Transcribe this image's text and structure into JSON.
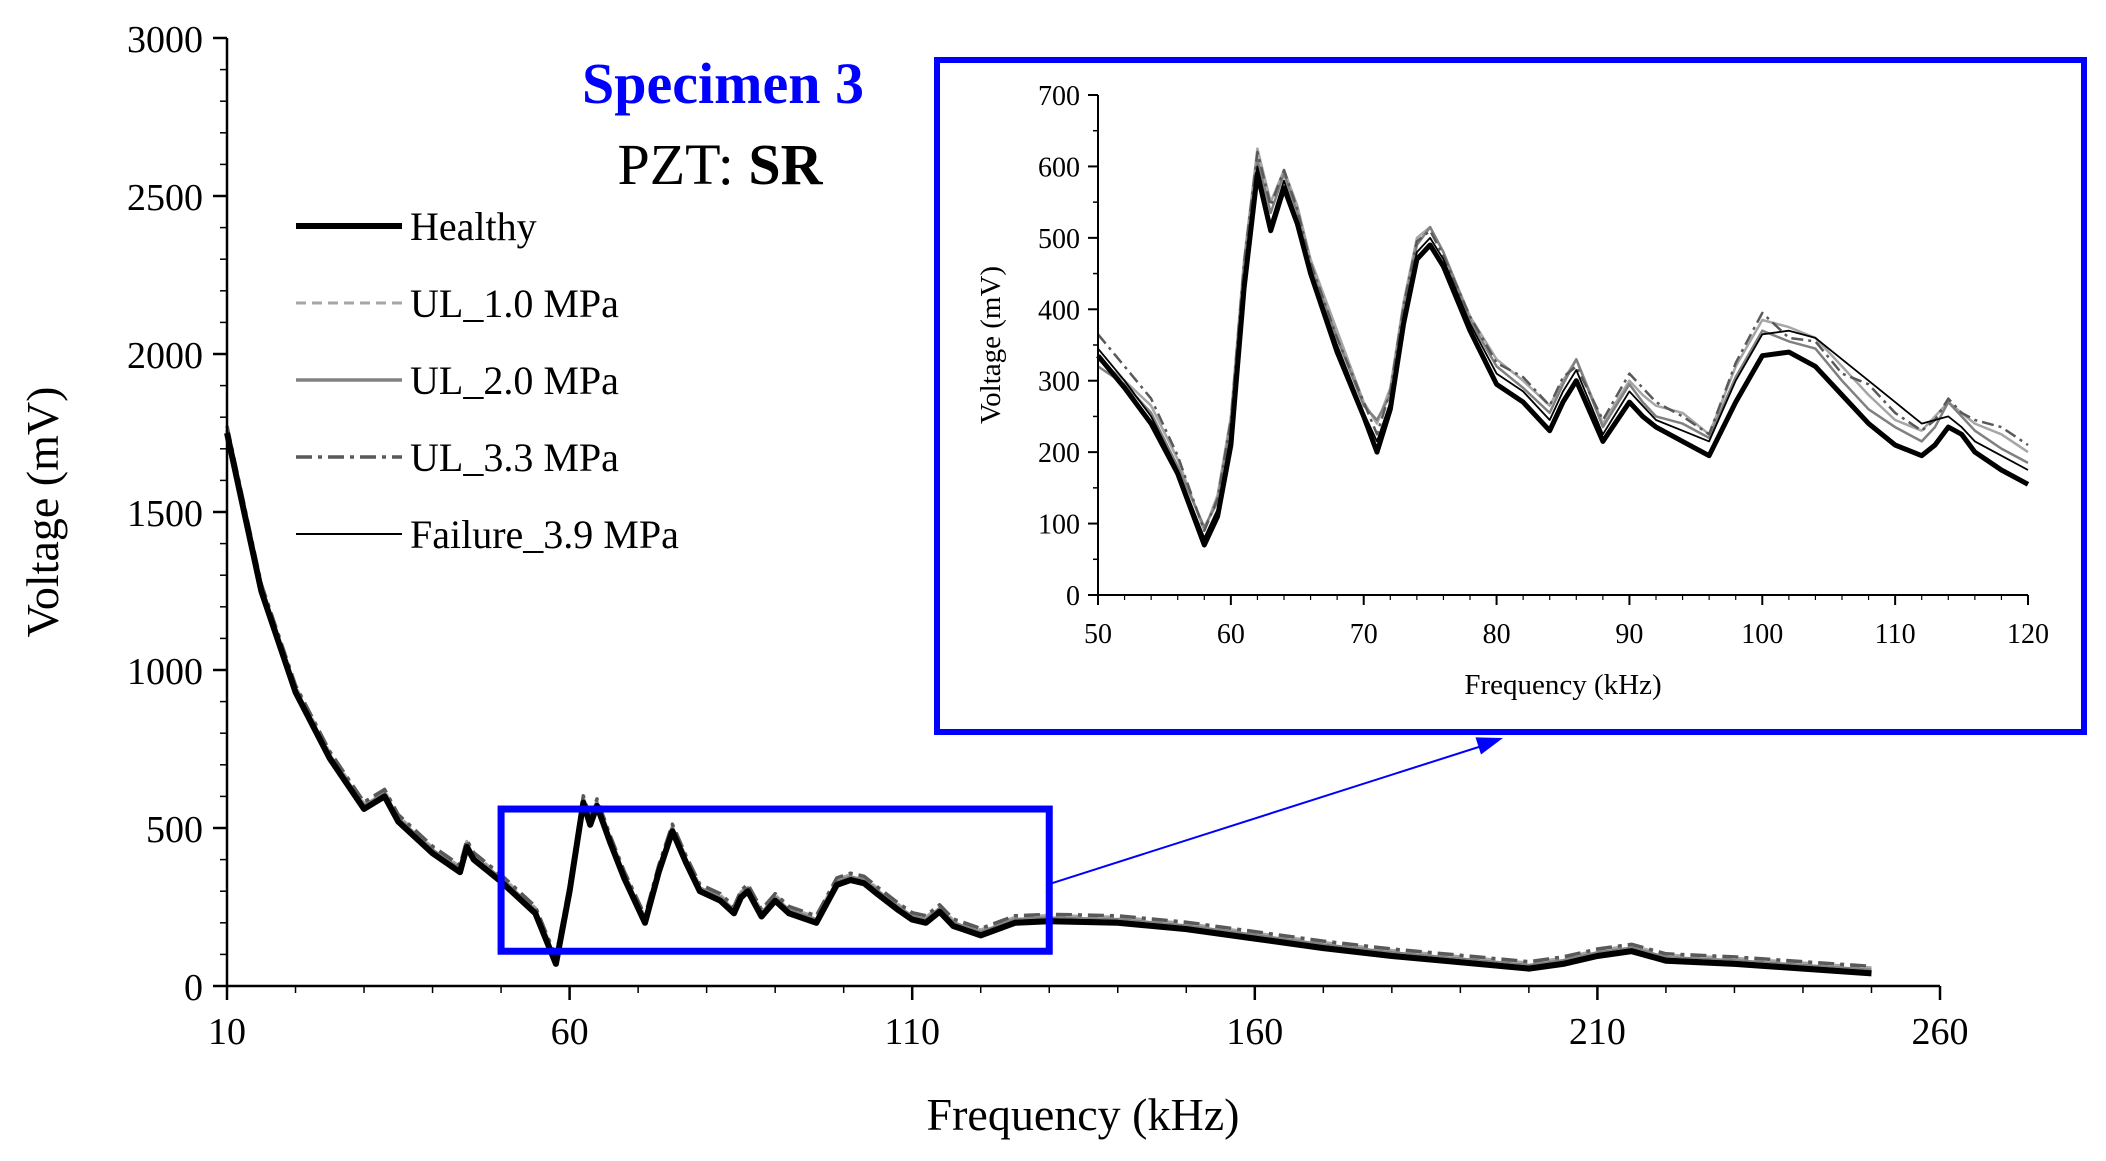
{
  "title": {
    "specimen": "Specimen 3",
    "pzt_prefix": "PZT: ",
    "pzt_value": "SR"
  },
  "colors": {
    "accent": "#0000ff",
    "healthy": "#000000",
    "ul_1": "#a6a6a6",
    "ul_2": "#808080",
    "ul_3": "#595959",
    "failure": "#000000"
  },
  "chart_data": [
    {
      "id": "main",
      "type": "line",
      "xlabel": "Frequency (kHz)",
      "ylabel": "Voltage (mV)",
      "xlim": [
        10,
        260
      ],
      "ylim": [
        0,
        3000
      ],
      "x_ticks": [
        10,
        60,
        110,
        160,
        210,
        260
      ],
      "y_ticks": [
        0,
        500,
        1000,
        1500,
        2000,
        2500,
        3000
      ],
      "legend": [
        {
          "key": "healthy",
          "label": "Healthy"
        },
        {
          "key": "ul_1",
          "label": "UL_1.0 MPa"
        },
        {
          "key": "ul_2",
          "label": "UL_2.0 MPa"
        },
        {
          "key": "ul_3",
          "label": "UL_3.3 MPa"
        },
        {
          "key": "failure",
          "label": "Failure_3.9 MPa"
        }
      ],
      "zoom_box": {
        "x": [
          50,
          130
        ],
        "y": [
          110,
          560
        ]
      },
      "series": [
        {
          "key": "healthy",
          "name": "Healthy",
          "offset": 0
        },
        {
          "key": "ul_1",
          "name": "UL_1.0 MPa",
          "offset": 18
        },
        {
          "key": "ul_2",
          "name": "UL_2.0 MPa",
          "offset": 10
        },
        {
          "key": "ul_3",
          "name": "UL_3.3 MPa",
          "offset": 22
        },
        {
          "key": "failure",
          "name": "Failure_3.9 MPa",
          "offset": 6
        }
      ],
      "x": [
        10,
        15,
        20,
        25,
        30,
        33,
        34,
        35,
        40,
        44,
        45,
        46,
        50,
        55,
        58,
        60,
        62,
        63,
        64,
        66,
        68,
        71,
        73,
        75,
        77,
        79,
        82,
        84,
        85,
        86,
        88,
        90,
        92,
        94,
        96,
        99,
        101,
        103,
        105,
        108,
        110,
        112,
        114,
        116,
        118,
        120,
        125,
        130,
        140,
        150,
        160,
        170,
        180,
        190,
        200,
        205,
        210,
        215,
        220,
        230,
        240,
        250
      ],
      "y": [
        1750,
        1250,
        930,
        720,
        560,
        600,
        560,
        520,
        420,
        360,
        440,
        400,
        330,
        230,
        70,
        300,
        580,
        510,
        570,
        450,
        340,
        200,
        360,
        490,
        390,
        300,
        270,
        230,
        280,
        300,
        220,
        270,
        230,
        215,
        200,
        320,
        335,
        325,
        290,
        240,
        210,
        200,
        235,
        190,
        175,
        160,
        200,
        205,
        200,
        180,
        150,
        120,
        95,
        75,
        55,
        70,
        95,
        110,
        80,
        70,
        55,
        40
      ]
    },
    {
      "id": "inset",
      "type": "line",
      "xlabel": "Frequency (kHz)",
      "ylabel": "Voltage (mV)",
      "xlim": [
        50,
        120
      ],
      "ylim": [
        0,
        700
      ],
      "x_ticks": [
        50,
        60,
        70,
        80,
        90,
        100,
        110,
        120
      ],
      "y_ticks": [
        0,
        100,
        200,
        300,
        400,
        500,
        600,
        700
      ],
      "series": [
        {
          "key": "healthy",
          "name": "Healthy",
          "x": [
            50,
            52,
            54,
            56,
            58,
            59,
            60,
            61,
            62,
            63,
            64,
            65,
            66,
            68,
            70,
            71,
            72,
            73,
            74,
            75,
            76,
            78,
            80,
            82,
            84,
            85,
            86,
            88,
            90,
            91,
            92,
            94,
            96,
            98,
            100,
            102,
            104,
            106,
            108,
            110,
            112,
            113,
            114,
            115,
            116,
            118,
            120
          ],
          "y": [
            335,
            290,
            240,
            170,
            70,
            110,
            210,
            430,
            590,
            510,
            570,
            520,
            450,
            340,
            250,
            200,
            260,
            380,
            470,
            490,
            460,
            370,
            295,
            270,
            230,
            270,
            300,
            215,
            270,
            250,
            235,
            215,
            195,
            270,
            335,
            340,
            320,
            280,
            240,
            210,
            195,
            210,
            235,
            225,
            200,
            175,
            155
          ]
        },
        {
          "key": "ul_1",
          "name": "UL_1.0 MPa",
          "x": [
            50,
            52,
            54,
            56,
            58,
            59,
            60,
            61,
            62,
            63,
            64,
            65,
            66,
            68,
            70,
            71,
            72,
            73,
            74,
            75,
            76,
            78,
            80,
            82,
            84,
            85,
            86,
            88,
            90,
            91,
            92,
            94,
            96,
            98,
            100,
            102,
            104,
            106,
            108,
            110,
            112,
            113,
            114,
            115,
            116,
            118,
            120
          ],
          "y": [
            330,
            300,
            265,
            190,
            90,
            140,
            250,
            470,
            625,
            550,
            595,
            545,
            470,
            370,
            270,
            240,
            290,
            410,
            500,
            515,
            480,
            390,
            330,
            300,
            265,
            300,
            330,
            240,
            300,
            280,
            265,
            255,
            225,
            320,
            385,
            375,
            360,
            320,
            280,
            245,
            230,
            250,
            270,
            255,
            240,
            225,
            200
          ]
        },
        {
          "key": "ul_2",
          "name": "UL_2.0 MPa",
          "x": [
            50,
            52,
            54,
            56,
            58,
            59,
            60,
            61,
            62,
            63,
            64,
            65,
            66,
            68,
            70,
            71,
            72,
            73,
            74,
            75,
            76,
            78,
            80,
            82,
            84,
            85,
            86,
            88,
            90,
            91,
            92,
            94,
            96,
            98,
            100,
            102,
            104,
            106,
            108,
            110,
            112,
            113,
            114,
            115,
            116,
            118,
            120
          ],
          "y": [
            320,
            295,
            255,
            180,
            95,
            130,
            240,
            460,
            610,
            535,
            590,
            535,
            460,
            360,
            265,
            245,
            280,
            400,
            490,
            515,
            480,
            385,
            320,
            290,
            255,
            295,
            330,
            235,
            295,
            270,
            250,
            240,
            220,
            305,
            370,
            355,
            345,
            300,
            260,
            235,
            215,
            235,
            270,
            250,
            230,
            205,
            185
          ]
        },
        {
          "key": "ul_3",
          "name": "UL_3.3 MPa",
          "x": [
            50,
            52,
            54,
            56,
            58,
            59,
            60,
            61,
            62,
            63,
            64,
            65,
            66,
            68,
            70,
            71,
            72,
            73,
            74,
            75,
            76,
            78,
            80,
            82,
            84,
            85,
            86,
            88,
            90,
            91,
            92,
            94,
            96,
            98,
            100,
            102,
            104,
            106,
            108,
            110,
            112,
            113,
            114,
            115,
            116,
            118,
            120
          ],
          "y": [
            365,
            320,
            275,
            195,
            90,
            135,
            245,
            465,
            620,
            545,
            595,
            540,
            465,
            360,
            270,
            225,
            285,
            405,
            495,
            510,
            475,
            390,
            325,
            305,
            265,
            305,
            320,
            245,
            310,
            290,
            270,
            250,
            225,
            325,
            395,
            360,
            355,
            310,
            295,
            255,
            230,
            245,
            275,
            255,
            245,
            235,
            210
          ]
        },
        {
          "key": "failure",
          "name": "Failure_3.9 MPa",
          "x": [
            50,
            52,
            54,
            56,
            58,
            59,
            60,
            61,
            62,
            63,
            64,
            65,
            66,
            68,
            70,
            71,
            72,
            73,
            74,
            75,
            76,
            78,
            80,
            82,
            84,
            85,
            86,
            88,
            90,
            91,
            92,
            94,
            96,
            98,
            100,
            102,
            104,
            106,
            108,
            110,
            112,
            113,
            114,
            115,
            116,
            118,
            120
          ],
          "y": [
            345,
            300,
            250,
            175,
            80,
            120,
            225,
            445,
            600,
            520,
            580,
            525,
            455,
            350,
            255,
            215,
            270,
            390,
            480,
            500,
            470,
            380,
            310,
            285,
            245,
            285,
            315,
            225,
            285,
            265,
            245,
            230,
            215,
            300,
            365,
            370,
            360,
            330,
            300,
            270,
            240,
            245,
            250,
            235,
            215,
            195,
            175
          ]
        }
      ]
    }
  ]
}
